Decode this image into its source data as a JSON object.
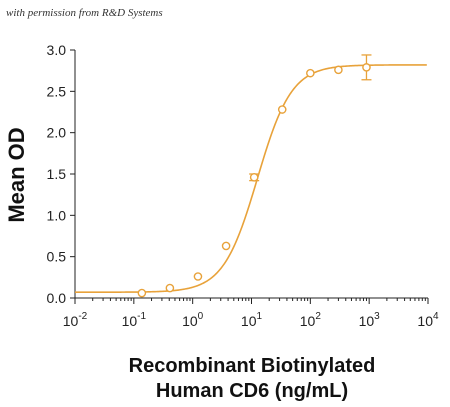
{
  "watermark": "with permission from R&D Systems",
  "chart_data": {
    "type": "scatter",
    "xlabel_lines": [
      "Recombinant Biotinylated",
      "Human CD6 (ng/mL)"
    ],
    "ylabel": "Mean OD",
    "x_scale": "log",
    "xlim": [
      0.01,
      10000
    ],
    "ylim": [
      0,
      3.0
    ],
    "x_ticks": [
      {
        "value": 0.01,
        "base": "10",
        "exp": "-2"
      },
      {
        "value": 0.1,
        "base": "10",
        "exp": "-1"
      },
      {
        "value": 1,
        "base": "10",
        "exp": "0"
      },
      {
        "value": 10,
        "base": "10",
        "exp": "1"
      },
      {
        "value": 100,
        "base": "10",
        "exp": "2"
      },
      {
        "value": 1000,
        "base": "10",
        "exp": "3"
      },
      {
        "value": 10000,
        "base": "10",
        "exp": "4"
      }
    ],
    "y_ticks": [
      "0.0",
      "0.5",
      "1.0",
      "1.5",
      "2.0",
      "2.5",
      "3.0"
    ],
    "color": "#E8A23A",
    "grid": false,
    "points": [
      {
        "x": 0.137,
        "y": 0.06,
        "err": 0.01
      },
      {
        "x": 0.41,
        "y": 0.12,
        "err": 0.01
      },
      {
        "x": 1.23,
        "y": 0.26,
        "err": 0.02
      },
      {
        "x": 3.7,
        "y": 0.63,
        "err": 0.02
      },
      {
        "x": 11.1,
        "y": 1.46,
        "err": 0.04
      },
      {
        "x": 33.3,
        "y": 2.28,
        "err": 0.02
      },
      {
        "x": 100,
        "y": 2.72,
        "err": 0.02
      },
      {
        "x": 300,
        "y": 2.76,
        "err": 0.02
      },
      {
        "x": 900,
        "y": 2.79,
        "err": 0.15
      }
    ],
    "fit": {
      "bottom": 0.07,
      "top": 2.82,
      "ec50": 12.6,
      "hill": 1.5
    }
  }
}
